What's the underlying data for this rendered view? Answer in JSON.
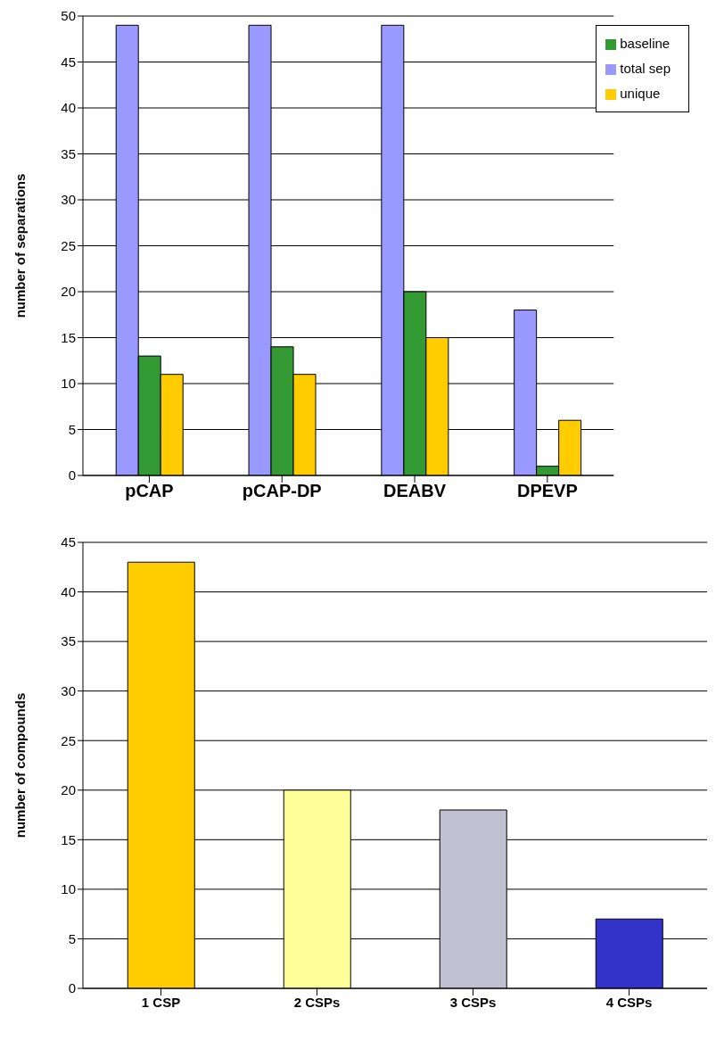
{
  "chart_data": [
    {
      "type": "bar",
      "ylabel": "number of separations",
      "categories": [
        "pCAP",
        "pCAP-DP",
        "DEABV",
        "DPEVP"
      ],
      "series": [
        {
          "name": "total sep",
          "color": "#9999ff",
          "values": [
            49,
            49,
            49,
            18
          ]
        },
        {
          "name": "baseline",
          "color": "#339933",
          "values": [
            13,
            14,
            20,
            1
          ]
        },
        {
          "name": "unique",
          "color": "#ffcc00",
          "values": [
            11,
            11,
            15,
            6
          ]
        }
      ],
      "ylim": [
        0,
        50
      ],
      "yticks": [
        0,
        5,
        10,
        15,
        20,
        25,
        30,
        35,
        40,
        45,
        50
      ],
      "grid": "y",
      "legend": "top right"
    },
    {
      "type": "bar",
      "ylabel": "number of compounds",
      "categories": [
        "1 CSP",
        "2 CSPs",
        "3 CSPs",
        "4 CSPs"
      ],
      "values": [
        43,
        20,
        18,
        7
      ],
      "colors": [
        "#ffcc00",
        "#ffff99",
        "#c0c0d0",
        "#3333cc"
      ],
      "ylim": [
        0,
        45
      ],
      "yticks": [
        0,
        5,
        10,
        15,
        20,
        25,
        30,
        35,
        40,
        45
      ],
      "grid": "y"
    }
  ]
}
